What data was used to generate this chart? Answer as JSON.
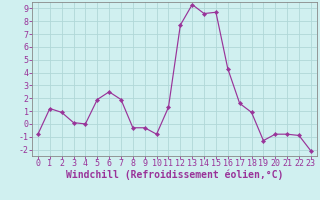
{
  "x": [
    0,
    1,
    2,
    3,
    4,
    5,
    6,
    7,
    8,
    9,
    10,
    11,
    12,
    13,
    14,
    15,
    16,
    17,
    18,
    19,
    20,
    21,
    22,
    23
  ],
  "y": [
    -0.8,
    1.2,
    0.9,
    0.1,
    0.0,
    1.9,
    2.5,
    1.9,
    -0.3,
    -0.3,
    -0.8,
    1.3,
    7.7,
    9.3,
    8.6,
    8.7,
    4.3,
    1.6,
    0.9,
    -1.3,
    -0.8,
    -0.8,
    -0.9,
    -2.1
  ],
  "line_color": "#993399",
  "marker": "D",
  "marker_size": 2.2,
  "bg_color": "#d0f0f0",
  "grid_color": "#b0d8d8",
  "xlabel": "Windchill (Refroidissement éolien,°C)",
  "xlim": [
    -0.5,
    23.5
  ],
  "ylim": [
    -2.5,
    9.5
  ],
  "yticks": [
    -2,
    -1,
    0,
    1,
    2,
    3,
    4,
    5,
    6,
    7,
    8,
    9
  ],
  "xticks": [
    0,
    1,
    2,
    3,
    4,
    5,
    6,
    7,
    8,
    9,
    10,
    11,
    12,
    13,
    14,
    15,
    16,
    17,
    18,
    19,
    20,
    21,
    22,
    23
  ],
  "tick_color": "#993399",
  "label_color": "#993399",
  "xlabel_fontsize": 7.0,
  "tick_fontsize": 6.0,
  "spine_color": "#888888"
}
